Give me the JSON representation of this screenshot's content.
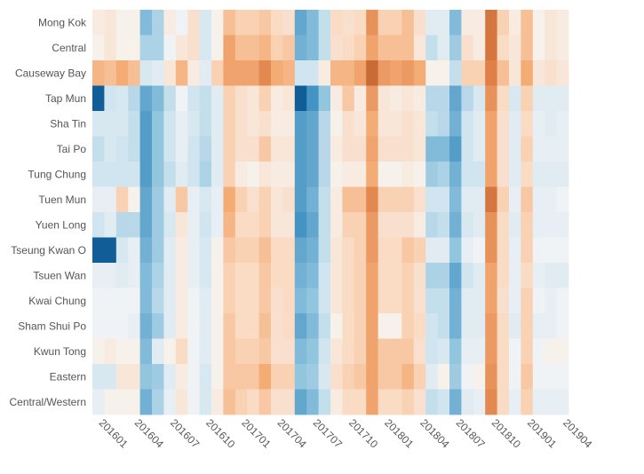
{
  "chart_data": {
    "type": "heatmap",
    "title": "",
    "xlabel": "",
    "ylabel": "",
    "rows": [
      "Mong Kok",
      "Central",
      "Causeway Bay",
      "Tap Mun",
      "Sha Tin",
      "Tai Po",
      "Tung Chung",
      "Tuen Mun",
      "Yuen Long",
      "Tseung Kwan O",
      "Tsuen Wan",
      "Kwai Chung",
      "Sham Shui Po",
      "Kwun Tong",
      "Eastern",
      "Central/Western"
    ],
    "columns": [
      "201601",
      "201602",
      "201603",
      "201604",
      "201605",
      "201606",
      "201607",
      "201608",
      "201609",
      "201610",
      "201611",
      "201612",
      "201701",
      "201702",
      "201703",
      "201704",
      "201705",
      "201706",
      "201707",
      "201708",
      "201709",
      "201710",
      "201711",
      "201712",
      "201801",
      "201802",
      "201803",
      "201804",
      "201805",
      "201806",
      "201807",
      "201808",
      "201809",
      "201810",
      "201811",
      "201812",
      "201901",
      "201902",
      "201903",
      "201904"
    ],
    "x_tick_labels": [
      "201601",
      "201604",
      "201607",
      "201610",
      "201701",
      "201704",
      "201707",
      "201710",
      "201801",
      "201804",
      "201807",
      "201810",
      "201901",
      "201904"
    ],
    "value_scale": "diverging, -1 (dark blue) to 1 (dark orange), 0 = near white",
    "values": [
      [
        0.1,
        0.15,
        0.05,
        0.05,
        -0.55,
        -0.4,
        0.1,
        -0.05,
        0.2,
        -0.2,
        0.05,
        0.4,
        0.3,
        0.3,
        0.35,
        0.25,
        0.2,
        -0.65,
        -0.55,
        -0.3,
        0.25,
        0.2,
        0.25,
        0.65,
        0.3,
        0.3,
        0.4,
        0.2,
        -0.15,
        -0.15,
        -0.55,
        0.1,
        0.1,
        0.8,
        0.3,
        0.1,
        0.4,
        0.05,
        0.15,
        0.1
      ],
      [
        0.05,
        0.15,
        0.05,
        0.05,
        -0.4,
        -0.4,
        -0.05,
        0.15,
        0.2,
        -0.2,
        0.05,
        0.55,
        0.4,
        0.4,
        0.45,
        0.3,
        0.35,
        -0.6,
        -0.55,
        -0.3,
        0.2,
        0.25,
        0.3,
        0.55,
        0.4,
        0.4,
        0.4,
        0.15,
        -0.3,
        -0.15,
        -0.45,
        0.2,
        0.1,
        0.8,
        0.25,
        0.15,
        0.4,
        0.05,
        0.15,
        0.1
      ],
      [
        0.45,
        0.4,
        0.5,
        0.4,
        -0.2,
        -0.15,
        0.15,
        0.45,
        0.1,
        -0.15,
        0.3,
        0.55,
        0.55,
        0.55,
        0.7,
        0.5,
        0.45,
        -0.25,
        -0.25,
        0.1,
        0.45,
        0.45,
        0.55,
        0.85,
        0.6,
        0.55,
        0.6,
        0.5,
        0.05,
        0.05,
        -0.3,
        0.3,
        0.3,
        0.75,
        0.4,
        0.15,
        0.5,
        0.15,
        0.2,
        0.15
      ],
      [
        -0.95,
        -0.25,
        -0.2,
        -0.35,
        -0.65,
        -0.55,
        -0.3,
        -0.05,
        -0.25,
        -0.3,
        -0.15,
        0.3,
        0.2,
        0.15,
        0.3,
        0.1,
        0.15,
        -0.95,
        -0.75,
        -0.5,
        0.1,
        0.35,
        0.1,
        0.6,
        0.15,
        0.1,
        0.15,
        0.1,
        -0.35,
        -0.35,
        -0.65,
        -0.35,
        -0.2,
        0.65,
        0.25,
        -0.2,
        0.3,
        -0.15,
        -0.15,
        -0.15
      ],
      [
        -0.2,
        -0.2,
        -0.2,
        -0.3,
        -0.7,
        -0.5,
        -0.25,
        -0.1,
        -0.2,
        -0.3,
        -0.15,
        0.3,
        0.2,
        0.15,
        0.2,
        0.1,
        0.1,
        -0.7,
        -0.65,
        -0.35,
        0.05,
        0.2,
        0.15,
        0.5,
        0.15,
        0.15,
        0.2,
        0.15,
        -0.3,
        -0.35,
        -0.6,
        -0.25,
        -0.15,
        0.55,
        0.2,
        -0.15,
        0.25,
        -0.1,
        -0.15,
        -0.1
      ],
      [
        -0.3,
        -0.2,
        -0.25,
        -0.3,
        -0.7,
        -0.5,
        -0.25,
        -0.1,
        -0.25,
        -0.35,
        -0.15,
        0.3,
        0.2,
        0.2,
        0.35,
        0.15,
        0.15,
        -0.7,
        -0.65,
        -0.35,
        0.1,
        0.2,
        0.2,
        0.55,
        0.2,
        0.2,
        0.2,
        0.15,
        -0.55,
        -0.55,
        -0.7,
        -0.25,
        -0.15,
        0.55,
        0.2,
        -0.15,
        0.3,
        -0.1,
        -0.1,
        -0.1
      ],
      [
        -0.25,
        -0.25,
        -0.25,
        -0.25,
        -0.7,
        -0.5,
        -0.3,
        -0.15,
        -0.25,
        -0.4,
        -0.15,
        0.3,
        0.1,
        0.05,
        0.15,
        0.1,
        0.1,
        -0.7,
        -0.65,
        -0.35,
        0.05,
        0.1,
        0.1,
        0.5,
        0.05,
        0.05,
        0.1,
        0.05,
        -0.45,
        -0.4,
        -0.6,
        -0.25,
        -0.25,
        0.55,
        0.2,
        -0.15,
        0.25,
        -0.15,
        -0.15,
        -0.15
      ],
      [
        -0.1,
        -0.1,
        0.3,
        0.05,
        -0.65,
        -0.45,
        -0.15,
        0.35,
        -0.1,
        -0.2,
        -0.1,
        0.5,
        0.3,
        0.2,
        0.3,
        0.15,
        0.2,
        -0.7,
        -0.6,
        -0.3,
        0.1,
        0.4,
        0.4,
        0.7,
        0.3,
        0.3,
        0.3,
        0.2,
        -0.25,
        -0.25,
        -0.55,
        -0.15,
        -0.15,
        0.8,
        0.3,
        -0.1,
        0.35,
        -0.1,
        -0.1,
        -0.05
      ],
      [
        -0.25,
        -0.15,
        -0.35,
        -0.35,
        -0.65,
        -0.45,
        -0.2,
        0.15,
        -0.1,
        -0.25,
        -0.1,
        0.45,
        0.25,
        0.25,
        0.3,
        0.15,
        0.15,
        -0.75,
        -0.65,
        -0.3,
        0.1,
        0.3,
        0.3,
        0.6,
        0.2,
        0.2,
        0.2,
        0.1,
        -0.35,
        -0.3,
        -0.6,
        -0.2,
        -0.15,
        0.65,
        0.25,
        -0.15,
        0.3,
        -0.1,
        -0.1,
        -0.1
      ],
      [
        -0.95,
        -0.95,
        -0.2,
        -0.1,
        -0.6,
        -0.45,
        -0.15,
        0.1,
        -0.1,
        -0.2,
        0.05,
        0.35,
        0.3,
        0.3,
        0.4,
        0.25,
        0.25,
        -0.65,
        -0.6,
        -0.3,
        0.15,
        0.25,
        0.3,
        0.6,
        0.25,
        0.25,
        0.35,
        0.3,
        -0.15,
        -0.15,
        -0.5,
        -0.1,
        -0.05,
        0.65,
        0.25,
        -0.1,
        0.3,
        -0.05,
        -0.05,
        -0.05
      ],
      [
        -0.1,
        -0.1,
        -0.15,
        -0.1,
        -0.55,
        -0.4,
        -0.15,
        0.1,
        -0.1,
        -0.2,
        0.05,
        0.3,
        0.25,
        0.25,
        0.35,
        0.25,
        0.25,
        -0.6,
        -0.55,
        -0.25,
        0.15,
        0.25,
        0.3,
        0.55,
        0.25,
        0.25,
        0.3,
        0.2,
        -0.4,
        -0.4,
        -0.65,
        -0.25,
        -0.15,
        0.55,
        0.25,
        -0.1,
        0.25,
        -0.1,
        -0.15,
        -0.15
      ],
      [
        -0.05,
        -0.05,
        -0.05,
        -0.05,
        -0.55,
        -0.35,
        -0.15,
        0.1,
        -0.05,
        -0.15,
        0.05,
        0.3,
        0.25,
        0.25,
        0.35,
        0.2,
        0.25,
        -0.55,
        -0.5,
        -0.25,
        0.15,
        0.25,
        0.3,
        0.55,
        0.25,
        0.25,
        0.3,
        0.2,
        -0.3,
        -0.3,
        -0.6,
        -0.15,
        -0.15,
        0.55,
        0.2,
        -0.1,
        0.3,
        -0.05,
        -0.1,
        -0.05
      ],
      [
        -0.05,
        -0.05,
        -0.05,
        -0.1,
        -0.6,
        -0.45,
        -0.15,
        0.1,
        -0.05,
        -0.15,
        0.05,
        0.35,
        0.25,
        0.25,
        0.4,
        0.2,
        0.25,
        -0.65,
        -0.55,
        -0.3,
        0.05,
        0.25,
        0.3,
        0.55,
        0.05,
        0.05,
        0.3,
        0.25,
        -0.25,
        -0.3,
        -0.6,
        -0.15,
        -0.15,
        0.6,
        0.25,
        -0.15,
        0.3,
        -0.1,
        -0.1,
        -0.05
      ],
      [
        0.05,
        0.1,
        0.05,
        0.05,
        -0.55,
        -0.15,
        0.05,
        0.25,
        -0.05,
        -0.15,
        0.05,
        0.35,
        0.3,
        0.3,
        0.35,
        0.2,
        0.2,
        -0.55,
        -0.5,
        -0.25,
        0.15,
        0.25,
        0.3,
        0.55,
        0.35,
        0.35,
        0.35,
        0.2,
        -0.25,
        -0.2,
        -0.5,
        -0.1,
        -0.1,
        0.6,
        0.25,
        -0.05,
        0.3,
        -0.05,
        0.05,
        0.05
      ],
      [
        -0.2,
        -0.2,
        0.15,
        0.15,
        -0.5,
        -0.45,
        -0.15,
        0.1,
        -0.05,
        -0.2,
        0.05,
        0.35,
        0.35,
        0.35,
        0.5,
        0.3,
        0.3,
        -0.5,
        -0.45,
        -0.2,
        0.2,
        0.3,
        0.35,
        0.55,
        0.35,
        0.35,
        0.45,
        0.3,
        -0.15,
        0.05,
        -0.45,
        -0.05,
        0.05,
        0.65,
        0.25,
        -0.05,
        0.35,
        -0.05,
        -0.05,
        -0.05
      ],
      [
        -0.1,
        0.05,
        0.05,
        0.05,
        -0.6,
        -0.4,
        -0.1,
        0.15,
        -0.05,
        -0.2,
        0.1,
        0.4,
        0.3,
        0.25,
        0.35,
        0.2,
        0.2,
        -0.65,
        -0.55,
        -0.3,
        0.1,
        0.25,
        0.25,
        0.55,
        0.25,
        0.25,
        0.3,
        0.2,
        -0.3,
        -0.25,
        -0.6,
        -0.15,
        -0.1,
        0.7,
        0.25,
        -0.1,
        0.3,
        -0.1,
        -0.1,
        -0.1
      ]
    ]
  }
}
